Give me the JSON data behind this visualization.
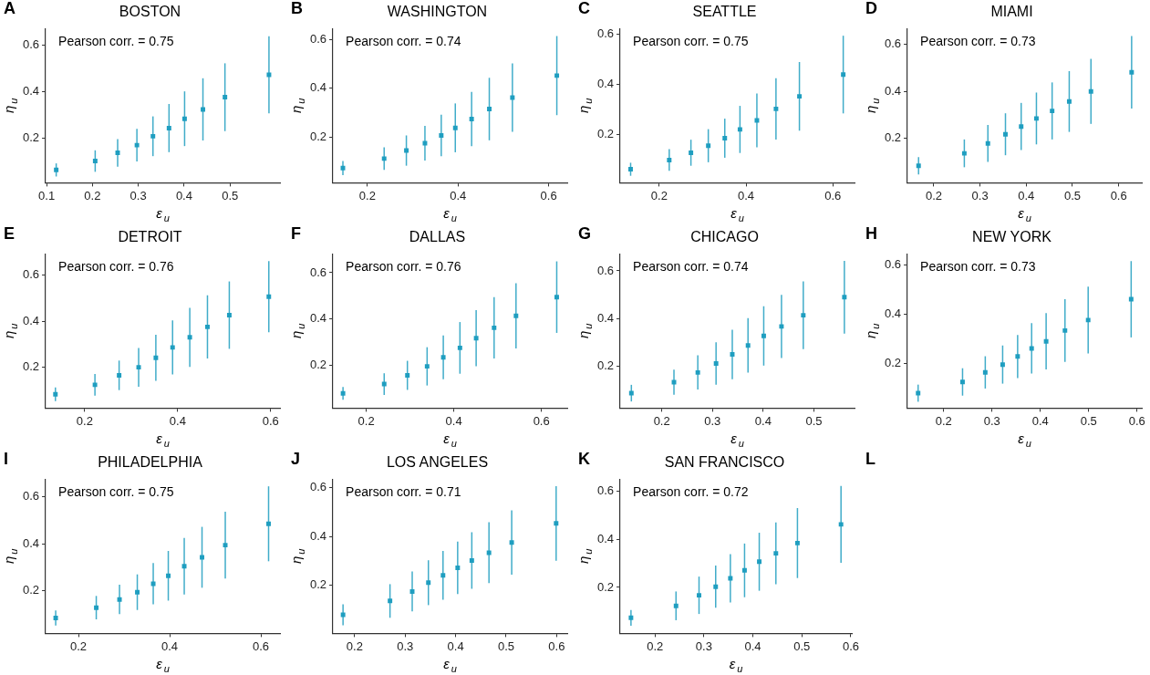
{
  "chart_data": [
    {
      "type": "scatter",
      "title": "BOSTON",
      "xlabel": "ε$_{u}$",
      "ylabel": "η$_{u}$",
      "annotations": [
        "A",
        "Pearson corr. = 0.75"
      ],
      "color": "#1f9ec0",
      "marker": "square",
      "x": [
        0.121,
        0.206,
        0.255,
        0.297,
        0.332,
        0.367,
        0.401,
        0.441,
        0.489,
        0.585
      ],
      "values": [
        0.065,
        0.103,
        0.138,
        0.171,
        0.209,
        0.244,
        0.284,
        0.324,
        0.376,
        0.472
      ],
      "errors": [
        0.028,
        0.046,
        0.059,
        0.07,
        0.085,
        0.103,
        0.117,
        0.133,
        0.145,
        0.165
      ],
      "xlim": [
        0.098,
        0.609
      ],
      "ylim": [
        0.01,
        0.67
      ],
      "xticks": [
        0.1,
        0.2,
        0.3,
        0.4,
        0.5
      ],
      "yticks": [
        0.2,
        0.4,
        0.6
      ]
    },
    {
      "type": "scatter",
      "title": "WASHINGTON",
      "xlabel": "ε$_{u}$",
      "ylabel": "η$_{u}$",
      "annotations": [
        "B",
        "Pearson corr. = 0.74"
      ],
      "color": "#1f9ec0",
      "marker": "square",
      "x": [
        0.146,
        0.237,
        0.286,
        0.327,
        0.363,
        0.394,
        0.43,
        0.469,
        0.52,
        0.618
      ],
      "values": [
        0.073,
        0.112,
        0.145,
        0.175,
        0.207,
        0.238,
        0.274,
        0.315,
        0.362,
        0.452
      ],
      "errors": [
        0.029,
        0.046,
        0.062,
        0.071,
        0.085,
        0.1,
        0.111,
        0.128,
        0.14,
        0.162
      ],
      "xlim": [
        0.124,
        0.641
      ],
      "ylim": [
        0.013,
        0.645
      ],
      "xticks": [
        0.2,
        0.4,
        0.6
      ],
      "yticks": [
        0.2,
        0.4,
        0.6
      ]
    },
    {
      "type": "scatter",
      "title": "SEATTLE",
      "xlabel": "ε$_{u}$",
      "ylabel": "η$_{u}$",
      "annotations": [
        "C",
        "Pearson corr. = 0.75"
      ],
      "color": "#1f9ec0",
      "marker": "square",
      "x": [
        0.134,
        0.223,
        0.273,
        0.313,
        0.351,
        0.386,
        0.425,
        0.469,
        0.523,
        0.624
      ],
      "values": [
        0.06,
        0.097,
        0.126,
        0.154,
        0.184,
        0.219,
        0.255,
        0.301,
        0.351,
        0.438
      ],
      "errors": [
        0.026,
        0.043,
        0.052,
        0.066,
        0.078,
        0.094,
        0.107,
        0.122,
        0.137,
        0.155
      ],
      "xlim": [
        0.11,
        0.65
      ],
      "ylim": [
        0.006,
        0.622
      ],
      "xticks": [
        0.2,
        0.4,
        0.6
      ],
      "yticks": [
        0.2,
        0.4,
        0.6
      ]
    },
    {
      "type": "scatter",
      "title": "MIAMI",
      "xlabel": "ε$_{u}$",
      "ylabel": "η$_{u}$",
      "annotations": [
        "D",
        "Pearson corr. = 0.73"
      ],
      "color": "#1f9ec0",
      "marker": "square",
      "x": [
        0.167,
        0.266,
        0.317,
        0.355,
        0.389,
        0.422,
        0.456,
        0.493,
        0.54,
        0.628
      ],
      "values": [
        0.084,
        0.137,
        0.179,
        0.218,
        0.251,
        0.285,
        0.317,
        0.357,
        0.4,
        0.481
      ],
      "errors": [
        0.037,
        0.059,
        0.078,
        0.089,
        0.1,
        0.11,
        0.121,
        0.129,
        0.138,
        0.154
      ],
      "xlim": [
        0.143,
        0.65
      ],
      "ylim": [
        0.012,
        0.667
      ],
      "xticks": [
        0.2,
        0.3,
        0.4,
        0.5,
        0.6
      ],
      "yticks": [
        0.2,
        0.4,
        0.6
      ]
    },
    {
      "type": "scatter",
      "title": "DETROIT",
      "xlabel": "ε$_{u}$",
      "ylabel": "η$_{u}$",
      "annotations": [
        "E",
        "Pearson corr. = 0.76"
      ],
      "color": "#1f9ec0",
      "marker": "square",
      "x": [
        0.137,
        0.222,
        0.274,
        0.316,
        0.353,
        0.389,
        0.426,
        0.464,
        0.511,
        0.596
      ],
      "values": [
        0.084,
        0.125,
        0.166,
        0.201,
        0.242,
        0.287,
        0.331,
        0.376,
        0.427,
        0.507
      ],
      "errors": [
        0.03,
        0.047,
        0.064,
        0.084,
        0.1,
        0.117,
        0.128,
        0.137,
        0.146,
        0.154
      ],
      "xlim": [
        0.116,
        0.62
      ],
      "ylim": [
        0.024,
        0.693
      ],
      "xticks": [
        0.2,
        0.4,
        0.6
      ],
      "yticks": [
        0.2,
        0.4,
        0.6
      ]
    },
    {
      "type": "scatter",
      "title": "DALLAS",
      "xlabel": "ε$_{u}$",
      "ylabel": "η$_{u}$",
      "annotations": [
        "F",
        "Pearson corr. = 0.76"
      ],
      "color": "#1f9ec0",
      "marker": "square",
      "x": [
        0.147,
        0.241,
        0.294,
        0.339,
        0.376,
        0.414,
        0.451,
        0.492,
        0.542,
        0.635
      ],
      "values": [
        0.077,
        0.117,
        0.155,
        0.194,
        0.233,
        0.274,
        0.316,
        0.361,
        0.413,
        0.494
      ],
      "errors": [
        0.028,
        0.047,
        0.063,
        0.083,
        0.095,
        0.112,
        0.122,
        0.133,
        0.141,
        0.155
      ],
      "xlim": [
        0.124,
        0.659
      ],
      "ylim": [
        0.013,
        0.682
      ],
      "xticks": [
        0.2,
        0.4,
        0.6
      ],
      "yticks": [
        0.2,
        0.4,
        0.6
      ]
    },
    {
      "type": "scatter",
      "title": "CHICAGO",
      "xlabel": "ε$_{u}$",
      "ylabel": "η$_{u}$",
      "annotations": [
        "G",
        "Pearson corr. = 0.74"
      ],
      "color": "#1f9ec0",
      "marker": "square",
      "x": [
        0.14,
        0.224,
        0.271,
        0.307,
        0.339,
        0.37,
        0.401,
        0.436,
        0.479,
        0.56
      ],
      "values": [
        0.085,
        0.131,
        0.172,
        0.21,
        0.248,
        0.286,
        0.326,
        0.366,
        0.413,
        0.489
      ],
      "errors": [
        0.035,
        0.053,
        0.072,
        0.089,
        0.104,
        0.115,
        0.125,
        0.133,
        0.143,
        0.153
      ],
      "xlim": [
        0.118,
        0.58
      ],
      "ylim": [
        0.022,
        0.672
      ],
      "xticks": [
        0.2,
        0.3,
        0.4,
        0.5
      ],
      "yticks": [
        0.2,
        0.4,
        0.6
      ]
    },
    {
      "type": "scatter",
      "title": "NEW YORK",
      "xlabel": "ε$_{u}$",
      "ylabel": "η$_{u}$",
      "annotations": [
        "H",
        "Pearson corr. = 0.73"
      ],
      "color": "#1f9ec0",
      "marker": "square",
      "x": [
        0.147,
        0.239,
        0.286,
        0.322,
        0.353,
        0.382,
        0.412,
        0.451,
        0.499,
        0.588
      ],
      "values": [
        0.077,
        0.123,
        0.162,
        0.194,
        0.227,
        0.26,
        0.289,
        0.333,
        0.376,
        0.461
      ],
      "errors": [
        0.035,
        0.056,
        0.066,
        0.078,
        0.088,
        0.103,
        0.115,
        0.128,
        0.137,
        0.156
      ],
      "xlim": [
        0.125,
        0.61
      ],
      "ylim": [
        0.016,
        0.647
      ],
      "xticks": [
        0.2,
        0.3,
        0.4,
        0.5,
        0.6
      ],
      "yticks": [
        0.2,
        0.4,
        0.6
      ]
    },
    {
      "type": "scatter",
      "title": "PHILADELPHIA",
      "xlabel": "ε$_{u}$",
      "ylabel": "η$_{u}$",
      "annotations": [
        "I",
        "Pearson corr. = 0.75"
      ],
      "color": "#1f9ec0",
      "marker": "square",
      "x": [
        0.15,
        0.239,
        0.29,
        0.329,
        0.364,
        0.397,
        0.432,
        0.471,
        0.522,
        0.617
      ],
      "values": [
        0.083,
        0.127,
        0.162,
        0.193,
        0.229,
        0.263,
        0.304,
        0.342,
        0.394,
        0.485
      ],
      "errors": [
        0.032,
        0.05,
        0.063,
        0.076,
        0.088,
        0.106,
        0.121,
        0.13,
        0.143,
        0.16
      ],
      "xlim": [
        0.128,
        0.642
      ],
      "ylim": [
        0.017,
        0.676
      ],
      "xticks": [
        0.2,
        0.4,
        0.6
      ],
      "yticks": [
        0.2,
        0.4,
        0.6
      ]
    },
    {
      "type": "scatter",
      "title": "LOS ANGELES",
      "xlabel": "ε$_{u}$",
      "ylabel": "η$_{u}$",
      "annotations": [
        "J",
        "Pearson corr. = 0.71"
      ],
      "color": "#1f9ec0",
      "marker": "square",
      "x": [
        0.177,
        0.27,
        0.314,
        0.346,
        0.375,
        0.404,
        0.432,
        0.466,
        0.511,
        0.599
      ],
      "values": [
        0.078,
        0.135,
        0.174,
        0.21,
        0.24,
        0.271,
        0.301,
        0.333,
        0.375,
        0.453
      ],
      "errors": [
        0.043,
        0.069,
        0.082,
        0.092,
        0.1,
        0.108,
        0.116,
        0.125,
        0.132,
        0.153
      ],
      "xlim": [
        0.157,
        0.621
      ],
      "ylim": [
        0.002,
        0.635
      ],
      "xticks": [
        0.2,
        0.3,
        0.4,
        0.5,
        0.6
      ],
      "yticks": [
        0.2,
        0.4,
        0.6
      ]
    },
    {
      "type": "scatter",
      "title": "SAN FRANCISCO",
      "xlabel": "ε$_{u}$",
      "ylabel": "η$_{u}$",
      "annotations": [
        "K",
        "Pearson corr. = 0.72"
      ],
      "color": "#1f9ec0",
      "marker": "square",
      "x": [
        0.151,
        0.243,
        0.29,
        0.324,
        0.354,
        0.383,
        0.413,
        0.447,
        0.491,
        0.58
      ],
      "values": [
        0.073,
        0.123,
        0.167,
        0.203,
        0.238,
        0.271,
        0.307,
        0.342,
        0.385,
        0.463
      ],
      "errors": [
        0.033,
        0.06,
        0.078,
        0.088,
        0.101,
        0.112,
        0.121,
        0.129,
        0.146,
        0.16
      ],
      "xlim": [
        0.129,
        0.602
      ],
      "ylim": [
        0.008,
        0.652
      ],
      "xticks": [
        0.2,
        0.3,
        0.4,
        0.5,
        0.6
      ],
      "yticks": [
        0.2,
        0.4,
        0.6
      ]
    },
    {
      "type": "other",
      "annotations": [
        "L"
      ]
    }
  ]
}
